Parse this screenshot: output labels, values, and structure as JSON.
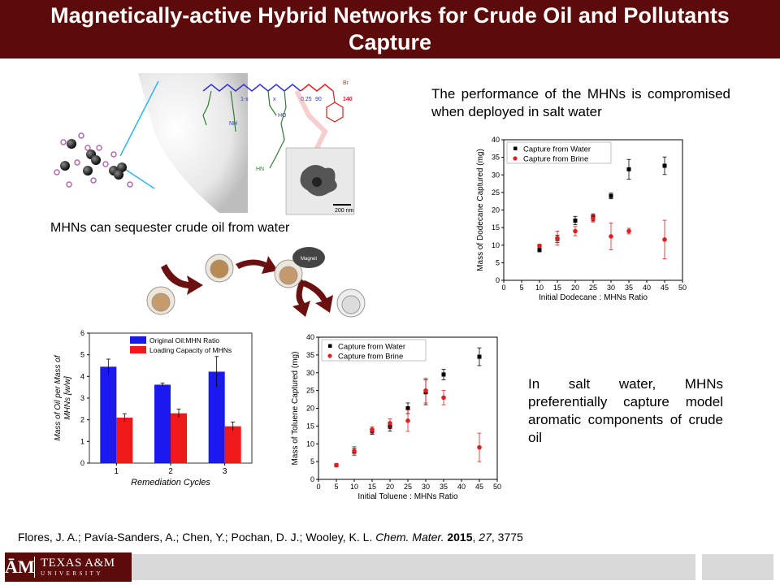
{
  "slide": {
    "title": "Magnetically-active Hybrid Networks for Crude Oil and Pollutants Capture",
    "text_top_right": "The performance of the MHNs is compromised when deployed in salt water",
    "caption_mid_left": "MHNs can sequester crude oil from water",
    "text_bottom_right": "In salt water, MHNs preferentially capture model aromatic components of crude oil",
    "reference": {
      "authors": "Flores, J. A.; Pavía-Sanders, A.; Chen, Y.; Pochan, D. J.; Wooley, K. L.",
      "journal": "Chem. Mater.",
      "year": "2015",
      "volume": "27",
      "pages": "3775"
    },
    "logo": {
      "mark": "ĀM",
      "line1": "TEXAS A&M",
      "line2": "UNIVERSITY"
    },
    "illustration_labels": {
      "scale_bar": "200 nm",
      "magnet": "Magnet",
      "polymer_sub_1x": "1-x",
      "polymer_sub_x": "x",
      "polymer_sub_025": "0.25",
      "polymer_sub_90": "90",
      "polymer_sub_140": "140",
      "polymer_br": "Br",
      "polymer_nh": "NH",
      "polymer_hn": "HN",
      "polymer_ho": "HO"
    },
    "colors": {
      "maroon": "#5c0b0b",
      "water_series": "#000000",
      "brine_series": "#e02020",
      "bar_blue": "#1a1aee",
      "bar_red": "#ee1a1a",
      "footer_gray": "#d9d9d9"
    }
  },
  "chart_data": [
    {
      "id": "dodecane",
      "type": "scatter",
      "xlabel": "Initial Dodecane : MHNs Ratio",
      "ylabel": "Mass of Dodecane Captured (mg)",
      "xlim": [
        0,
        50
      ],
      "ylim": [
        0,
        40
      ],
      "xticks": [
        0,
        5,
        10,
        15,
        20,
        25,
        30,
        35,
        40,
        45,
        50
      ],
      "yticks": [
        0,
        5,
        10,
        15,
        20,
        25,
        30,
        35,
        40
      ],
      "legend": "top-left",
      "series": [
        {
          "name": "Capture from Water",
          "color": "#000000",
          "marker": "square",
          "x": [
            10,
            15,
            20,
            25,
            30,
            35,
            45
          ],
          "y": [
            8.7,
            11.8,
            17.0,
            17.9,
            24.0,
            31.6,
            32.6
          ],
          "err": [
            0.6,
            1.0,
            1.2,
            1.0,
            0.8,
            2.8,
            2.5
          ]
        },
        {
          "name": "Capture from Brine",
          "color": "#e02020",
          "marker": "circle",
          "x": [
            10,
            15,
            20,
            25,
            30,
            35,
            45
          ],
          "y": [
            9.8,
            12.0,
            14.0,
            17.6,
            12.5,
            14.0,
            11.6
          ],
          "err": [
            0.5,
            2.0,
            1.3,
            1.0,
            3.8,
            0.8,
            5.5
          ]
        }
      ]
    },
    {
      "id": "toluene",
      "type": "scatter",
      "xlabel": "Initial Toluene : MHNs Ratio",
      "ylabel": "Mass of Toluene Captured (mg)",
      "xlim": [
        0,
        50
      ],
      "ylim": [
        0,
        40
      ],
      "xticks": [
        0,
        5,
        10,
        15,
        20,
        25,
        30,
        35,
        40,
        45,
        50
      ],
      "yticks": [
        0,
        5,
        10,
        15,
        20,
        25,
        30,
        35,
        40
      ],
      "legend": "top-left",
      "series": [
        {
          "name": "Capture from Water",
          "color": "#000000",
          "marker": "square",
          "x": [
            5,
            10,
            15,
            20,
            25,
            30,
            35,
            45
          ],
          "y": [
            4.0,
            7.8,
            13.5,
            14.8,
            20.0,
            24.5,
            29.5,
            34.5
          ],
          "err": [
            0.4,
            1.0,
            0.8,
            1.2,
            1.5,
            3.5,
            1.5,
            2.5
          ]
        },
        {
          "name": "Capture from Brine",
          "color": "#e02020",
          "marker": "circle",
          "x": [
            5,
            10,
            15,
            20,
            25,
            30,
            35,
            45
          ],
          "y": [
            4.0,
            8.0,
            14.0,
            15.8,
            16.5,
            25.0,
            23.0,
            9.0
          ],
          "err": [
            0.5,
            1.2,
            0.8,
            1.2,
            3.0,
            3.5,
            2.0,
            4.0
          ]
        }
      ]
    },
    {
      "id": "remediation",
      "type": "bar",
      "xlabel": "Remediation Cycles",
      "ylabel": "Mass of Oil per Mass of MHNs [w/w]",
      "ylim": [
        0,
        6
      ],
      "yticks": [
        0,
        1,
        2,
        3,
        4,
        5,
        6
      ],
      "categories": [
        "1",
        "2",
        "3"
      ],
      "legend": "top-right",
      "series": [
        {
          "name": "Original Oil:MHN Ratio",
          "color": "#1a1aee",
          "values": [
            4.45,
            3.62,
            4.22
          ],
          "err": [
            0.35,
            0.08,
            0.7
          ]
        },
        {
          "name": "Loading Capacity of MHNs",
          "color": "#ee1a1a",
          "values": [
            2.1,
            2.3,
            1.7
          ],
          "err": [
            0.18,
            0.2,
            0.2
          ]
        }
      ]
    }
  ]
}
